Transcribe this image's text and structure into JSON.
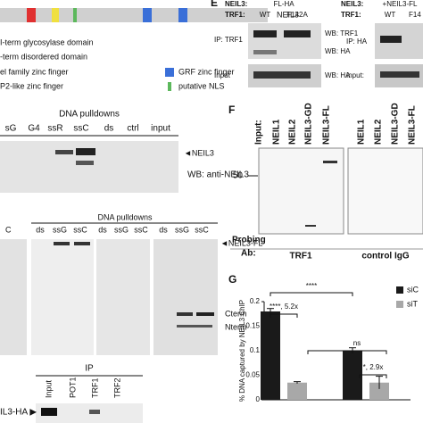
{
  "panel_a": {
    "protein": "NEIL3",
    "legend": [
      "I-term glycosylase domain",
      "-term disordered domain",
      "el family zinc finger",
      "GRF zinc finger",
      "P2-like zinc finger",
      "putative NLS"
    ]
  },
  "panel_b": {
    "title": "DNA pulldowns",
    "lanes": [
      "sG",
      "G4",
      "ssR",
      "ssC",
      "ds",
      "ctrl",
      "input"
    ],
    "band": "◄NEIL3",
    "wb": "WB: anti-NEIL3"
  },
  "panel_c": {
    "edge_lane": "C",
    "title": "DNA pulldowns",
    "lanes": [
      "ds",
      "ssG",
      "ssC",
      "ds",
      "ssG",
      "ssC",
      "ds",
      "ssG",
      "ssC"
    ],
    "bands": [
      "◄NEIL3-FL",
      "Cterm",
      "Nterm"
    ]
  },
  "panel_d": {
    "ip": "IP",
    "lanes": [
      "Input",
      "POT1",
      "TRF1",
      "TRF2"
    ],
    "band": "IL3-HA ▶"
  },
  "panel_e": {
    "letter": "E",
    "left": {
      "neil3_label": "NEIL3:",
      "neil3": "FL-HA",
      "trf1_label": "TRF1:",
      "lanes": [
        "WT",
        "F142A"
      ],
      "ip": "IP: TRF1",
      "input": "Input",
      "wb": [
        "WB: TRF1",
        "WB: HA",
        "WB: HA"
      ]
    },
    "right": {
      "neil3_label": "NEIL3:",
      "neil3": "+NEIL3-FL",
      "trf1_label": "TRF1:",
      "lanes": [
        "WT",
        "F14"
      ],
      "ip": "IP: HA",
      "input": "Input:"
    }
  },
  "panel_f": {
    "letter": "F",
    "input_label": "Input:",
    "lanes_left": [
      "NEIL1",
      "NEIL2",
      "NEIL3-GD",
      "NEIL3-FL"
    ],
    "lanes_right": [
      "NEIL1",
      "NEIL2",
      "NEIL3-GD",
      "NEIL3-FL"
    ],
    "marker": "50",
    "probing": [
      "Probing",
      "Ab:"
    ],
    "antibodies": [
      "TRF1",
      "control IgG"
    ]
  },
  "panel_g": {
    "letter": "G",
    "chart_data": {
      "type": "bar",
      "ylabel": "% DNA captured by NEIL3 ChIP",
      "categories": [
        null,
        null
      ],
      "series": [
        {
          "name": "siC",
          "color": "#1a1a1a",
          "values": [
            0.18,
            0.1
          ],
          "errors": [
            0.006,
            0.006
          ]
        },
        {
          "name": "siT",
          "color": "#a8a8a8",
          "values": [
            0.035,
            0.035
          ],
          "errors": [
            0.002,
            0.013
          ]
        }
      ],
      "ylim": [
        0,
        0.2
      ],
      "yticks": [
        0,
        0.05,
        0.1,
        0.15,
        0.2
      ],
      "annotations": [
        "****, 5.2x",
        "****",
        "ns",
        "*, 2.9x"
      ]
    }
  }
}
